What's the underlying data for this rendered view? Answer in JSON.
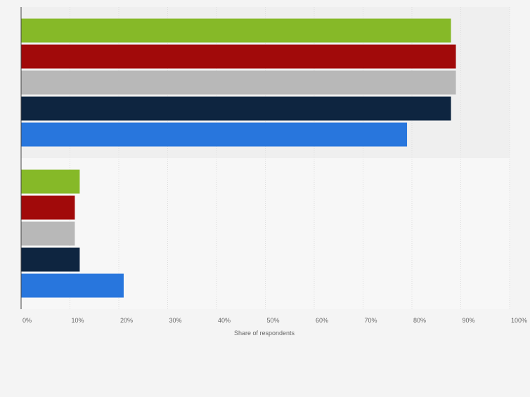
{
  "chart_data": {
    "type": "bar",
    "orientation": "horizontal",
    "categories": [
      "",
      ""
    ],
    "series": [
      {
        "color": "#86b928",
        "values": [
          88,
          12
        ]
      },
      {
        "color": "#a10a0a",
        "values": [
          89,
          11
        ]
      },
      {
        "color": "#b8b8b8",
        "values": [
          89,
          11
        ]
      },
      {
        "color": "#0e2540",
        "values": [
          88,
          12
        ]
      },
      {
        "color": "#2876dd",
        "values": [
          79,
          21
        ]
      }
    ],
    "xlabel": "Share of respondents",
    "ylabel": "",
    "xlim": [
      0,
      100
    ],
    "x_ticks": [
      {
        "value": 0,
        "label": "0%"
      },
      {
        "value": 10,
        "label": "10%"
      },
      {
        "value": 20,
        "label": "20%"
      },
      {
        "value": 30,
        "label": "30%"
      },
      {
        "value": 40,
        "label": "40%"
      },
      {
        "value": 50,
        "label": "50%"
      },
      {
        "value": 60,
        "label": "60%"
      },
      {
        "value": 70,
        "label": "70%"
      },
      {
        "value": 80,
        "label": "80%"
      },
      {
        "value": 90,
        "label": "90%"
      },
      {
        "value": 100,
        "label": "100%"
      }
    ],
    "grid": true,
    "legend": "none"
  }
}
